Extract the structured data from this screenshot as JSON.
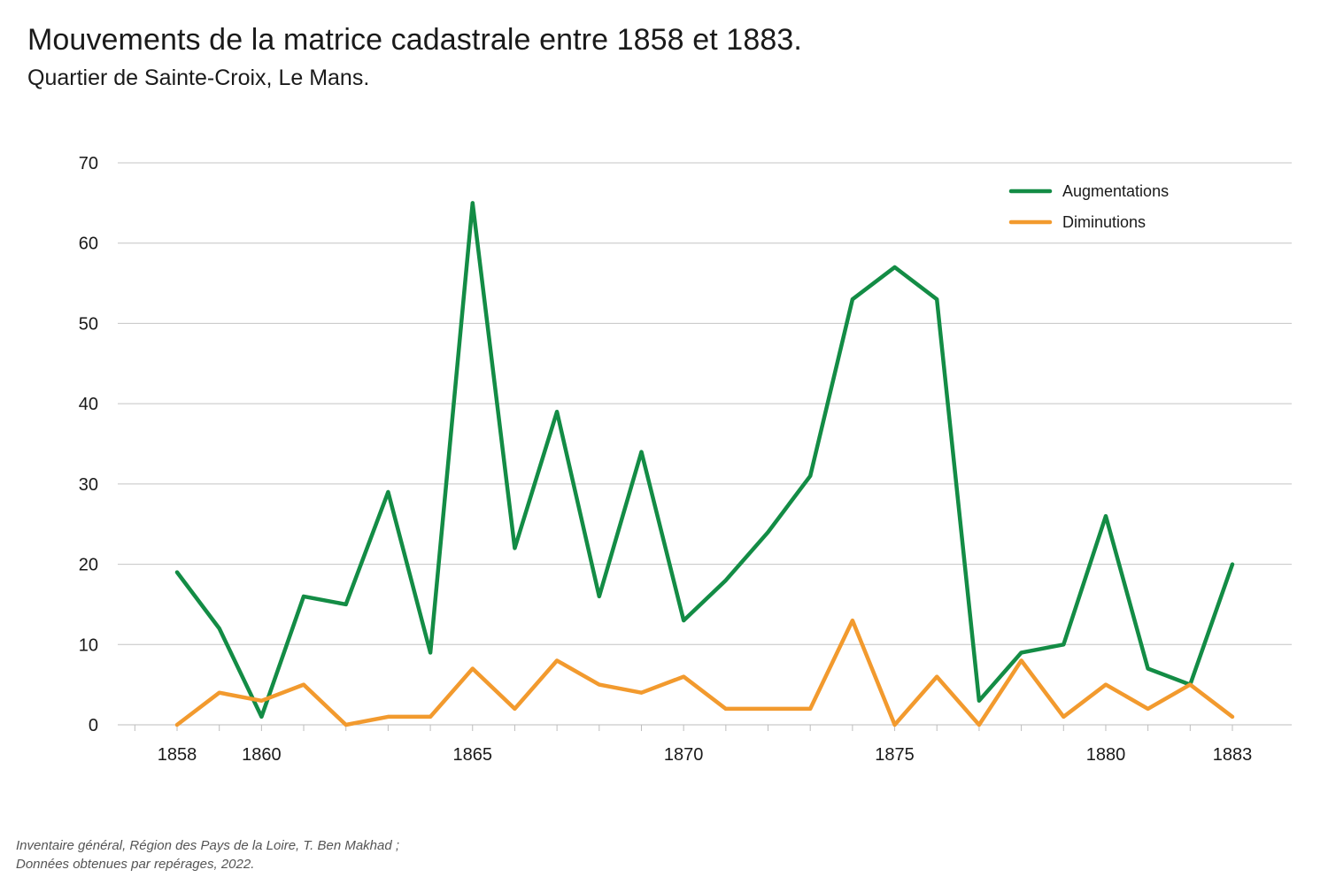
{
  "header": {
    "title": "Mouvements de la matrice cadastrale entre 1858 et 1883.",
    "subtitle": "Quartier de Sainte-Croix, Le Mans."
  },
  "source": {
    "line1": "Inventaire général, Région des Pays de la Loire, T. Ben Makhad ;",
    "line2": "Données obtenues par repérages, 2022."
  },
  "chart_data": {
    "type": "line",
    "title": "Mouvements de la matrice cadastrale entre 1858 et 1883.",
    "subtitle": "Quartier de Sainte-Croix, Le Mans.",
    "xlabel": "",
    "ylabel": "",
    "x": [
      1858,
      1859,
      1860,
      1861,
      1862,
      1863,
      1864,
      1865,
      1866,
      1867,
      1868,
      1869,
      1870,
      1871,
      1872,
      1873,
      1874,
      1875,
      1876,
      1877,
      1878,
      1879,
      1880,
      1881,
      1882,
      1883
    ],
    "xticks": [
      1858,
      1860,
      1865,
      1870,
      1875,
      1880,
      1883
    ],
    "xlim": [
      1857,
      1884
    ],
    "ylim": [
      0,
      70
    ],
    "yticks": [
      0,
      10,
      20,
      30,
      40,
      50,
      60,
      70
    ],
    "grid": "horizontal",
    "legend_position": "top-right",
    "series": [
      {
        "name": "Augmentations",
        "color": "#138c45",
        "values": [
          19,
          12,
          1,
          16,
          15,
          29,
          9,
          65,
          22,
          39,
          16,
          34,
          13,
          18,
          24,
          31,
          53,
          57,
          53,
          3,
          9,
          10,
          26,
          7,
          5,
          20
        ]
      },
      {
        "name": "Diminutions",
        "color": "#f29a2e",
        "values": [
          0,
          4,
          3,
          5,
          0,
          1,
          1,
          7,
          2,
          8,
          5,
          4,
          6,
          2,
          2,
          2,
          13,
          0,
          6,
          0,
          8,
          1,
          5,
          2,
          5,
          1
        ]
      }
    ]
  }
}
